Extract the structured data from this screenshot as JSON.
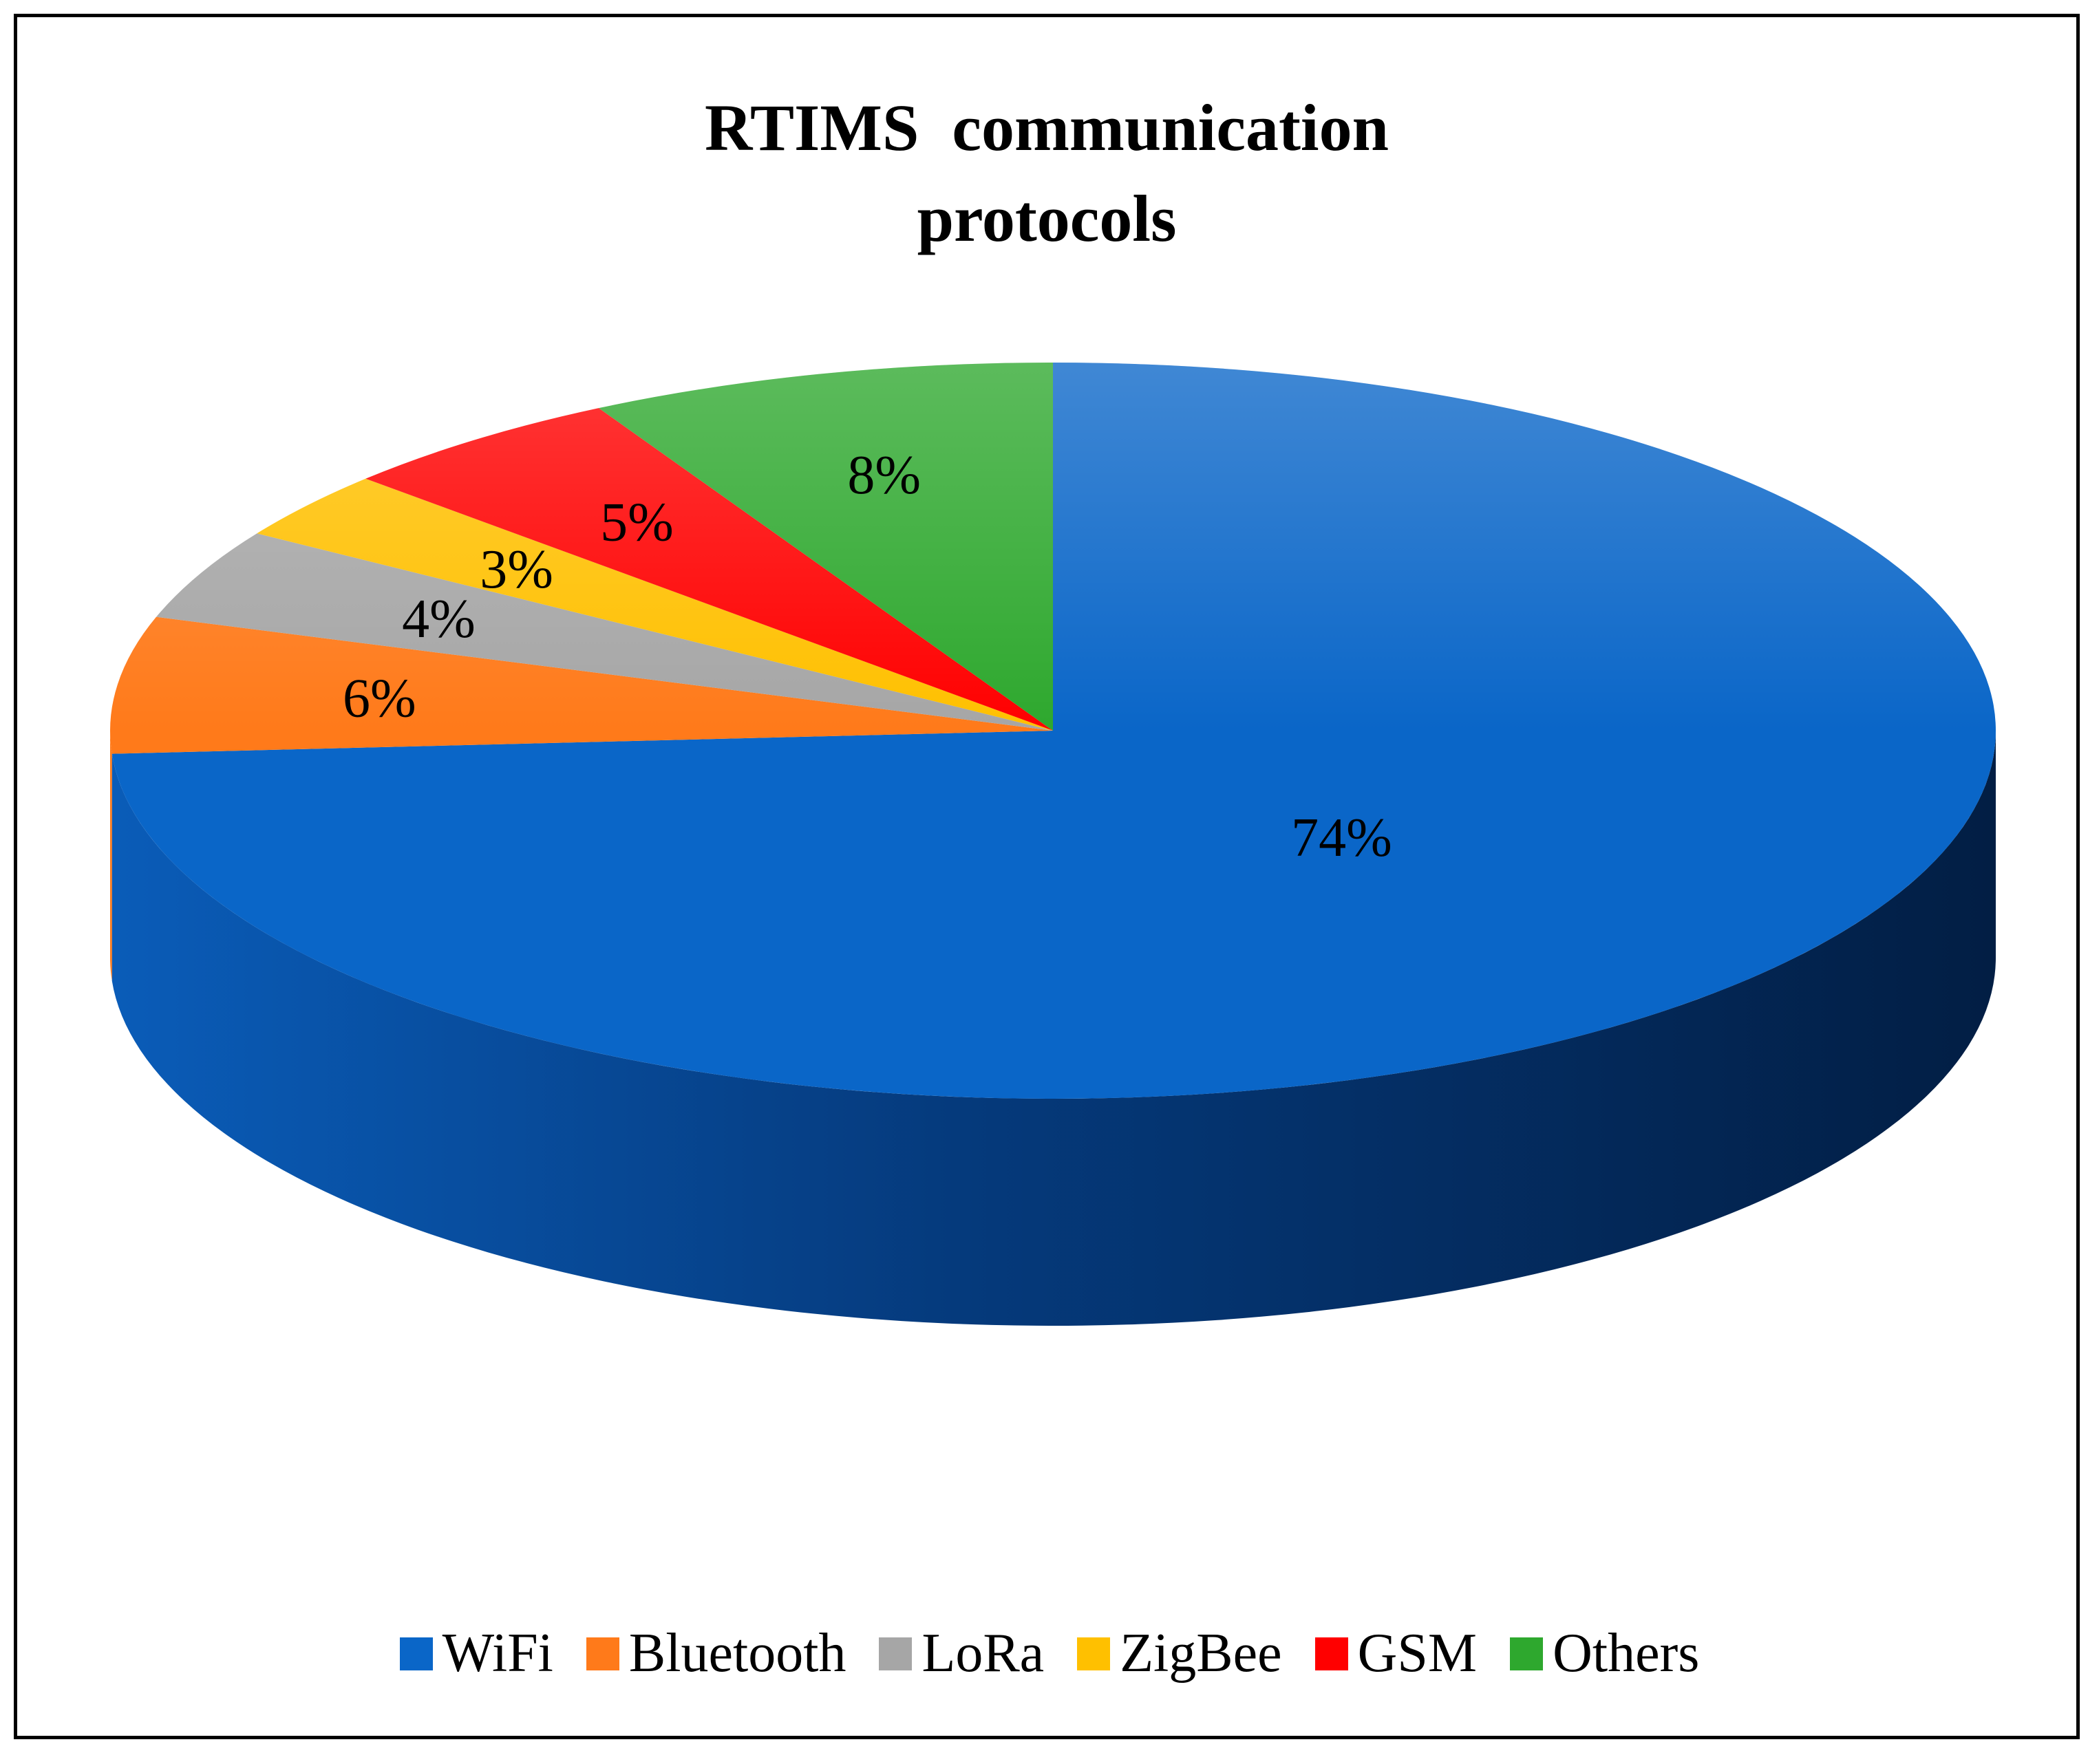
{
  "chart_data": {
    "type": "pie",
    "title_lines": [
      "RTIMS  communication",
      "protocols"
    ],
    "slices": [
      {
        "name": "WiFi",
        "value": 74,
        "label": "74%",
        "color": "#0a66c8"
      },
      {
        "name": "Bluetooth",
        "value": 6,
        "label": "6%",
        "color": "#ff7a1a"
      },
      {
        "name": "LoRa",
        "value": 4,
        "label": "4%",
        "color": "#a6a6a6"
      },
      {
        "name": "ZigBee",
        "value": 3,
        "label": "3%",
        "color": "#ffc000"
      },
      {
        "name": "GSM",
        "value": 5,
        "label": "5%",
        "color": "#ff0000"
      },
      {
        "name": "Others",
        "value": 8,
        "label": "8%",
        "color": "#2ea82e"
      }
    ],
    "legend_position": "bottom",
    "style": "3d"
  }
}
